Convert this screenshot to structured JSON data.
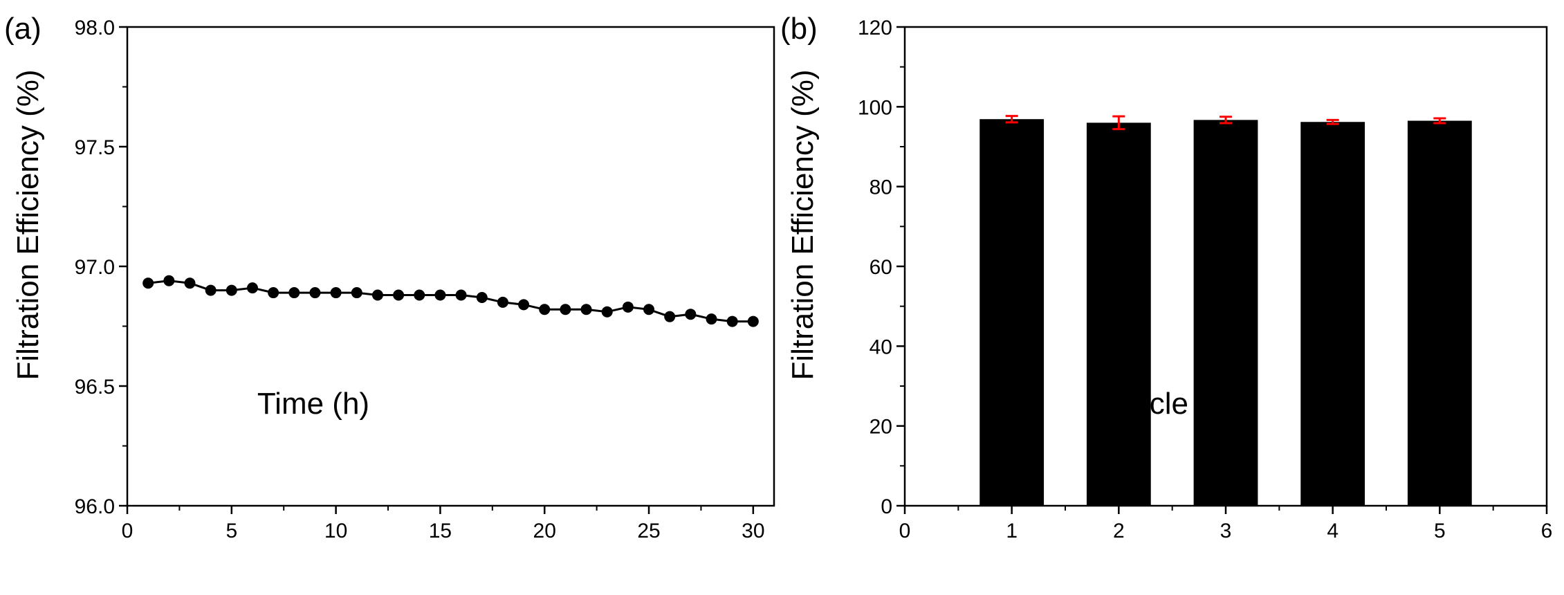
{
  "chart_data": [
    {
      "type": "line",
      "panel_label": "(a)",
      "xlabel": "Time (h)",
      "ylabel": "Filtration Efficiency (%)",
      "xlim": [
        0,
        31
      ],
      "ylim": [
        96.0,
        98.0
      ],
      "xticks": [
        "0",
        "5",
        "10",
        "15",
        "20",
        "25",
        "30"
      ],
      "yticks": [
        "96.0",
        "96.5",
        "97.0",
        "97.5",
        "98.0"
      ],
      "grid": false,
      "series": [
        {
          "name": "Filtration Efficiency",
          "color": "#000000",
          "marker": "circle",
          "x": [
            1,
            2,
            3,
            4,
            5,
            6,
            7,
            8,
            9,
            10,
            11,
            12,
            13,
            14,
            15,
            16,
            17,
            18,
            19,
            20,
            21,
            22,
            23,
            24,
            25,
            26,
            27,
            28,
            29,
            30
          ],
          "y": [
            96.93,
            96.94,
            96.93,
            96.9,
            96.9,
            96.91,
            96.89,
            96.89,
            96.89,
            96.89,
            96.89,
            96.88,
            96.88,
            96.88,
            96.88,
            96.88,
            96.87,
            96.85,
            96.84,
            96.82,
            96.82,
            96.82,
            96.81,
            96.83,
            96.82,
            96.79,
            96.8,
            96.78,
            96.77,
            96.77
          ]
        }
      ]
    },
    {
      "type": "bar",
      "panel_label": "(b)",
      "xlabel": "Cycle",
      "ylabel": "Filtration Efficiency (%)",
      "xlim": [
        0,
        6
      ],
      "ylim": [
        0,
        120
      ],
      "xticks": [
        "0",
        "1",
        "2",
        "3",
        "4",
        "5",
        "6"
      ],
      "yticks": [
        "0",
        "20",
        "40",
        "60",
        "80",
        "100",
        "120"
      ],
      "grid": false,
      "bar_color": "#000000",
      "error_color": "#ff0000",
      "categories": [
        1,
        2,
        3,
        4,
        5
      ],
      "values": [
        96.9,
        96.0,
        96.7,
        96.2,
        96.5
      ],
      "errors": [
        0.8,
        1.6,
        0.8,
        0.5,
        0.6
      ]
    }
  ]
}
